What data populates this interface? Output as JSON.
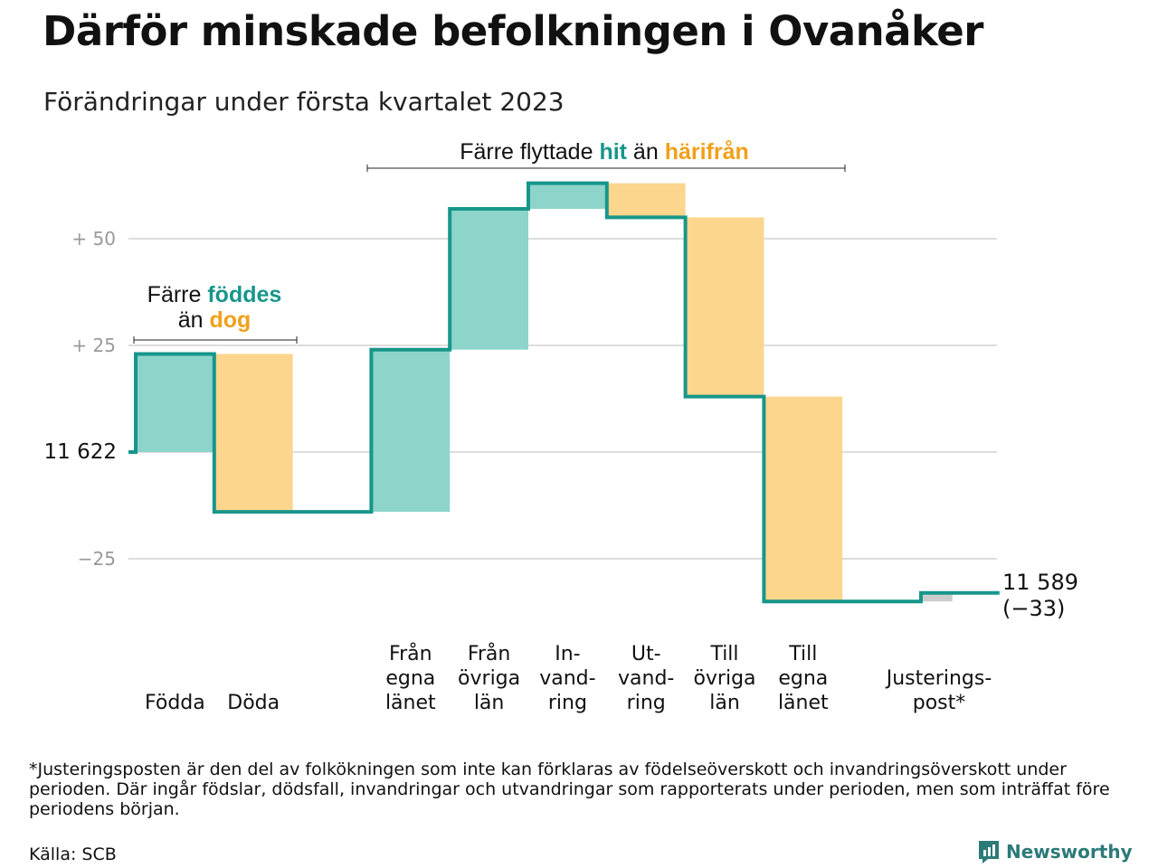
{
  "title": "Därför minskade befolkningen i Ovanåker",
  "subtitle": "Förändringar under första kvartalet 2023",
  "annotations": {
    "births_deaths": {
      "line1_prefix": "Färre ",
      "line1_highlight": "föddes",
      "line2_prefix": "än ",
      "line2_highlight": "dog"
    },
    "migration": {
      "prefix": "Färre flyttade ",
      "highlight1": "hit",
      "middle": " än ",
      "highlight2": "härifrån"
    }
  },
  "start_label": "11 622",
  "end_label": {
    "value": "11 589",
    "change": "(−33)"
  },
  "footnote": "*Justeringsposten är den del av folkökningen som inte kan förklaras av födelseöverskott och invandringsöverskott under perioden. Där ingår födslar, dödsfall, invandringar och utvandringar som rapporterats under perioden, men som inträffat före periodens början.",
  "source": "Källa: SCB",
  "brand": "Newsworthy",
  "colors": {
    "increase": "#8dd4cb",
    "decrease": "#fbd68c",
    "line": "#17968a",
    "adjustment": "#cccccc",
    "grid": "#dddddd",
    "tick_text": "#999999",
    "highlight_teal": "#17968a",
    "highlight_orange": "#f0a01a"
  },
  "chart_data": {
    "type": "waterfall",
    "start_value": 11622,
    "end_value": 11589,
    "total_change": -33,
    "yticks": [
      {
        "value": 50,
        "label": "+ 50"
      },
      {
        "value": 25,
        "label": "+ 25"
      },
      {
        "value": 0,
        "label": ""
      },
      {
        "value": -25,
        "label": "−25"
      }
    ],
    "ylim": [
      -35,
      66
    ],
    "categories": [
      {
        "label": [
          "Födda"
        ],
        "change": 23,
        "kind": "increase"
      },
      {
        "label": [
          "Döda"
        ],
        "change": -37,
        "kind": "decrease"
      },
      {
        "label": [
          ""
        ],
        "change": 0,
        "kind": "gap"
      },
      {
        "label": [
          "Från",
          "egna",
          "länet"
        ],
        "change": 38,
        "kind": "increase"
      },
      {
        "label": [
          "Från",
          "övriga",
          "län"
        ],
        "change": 33,
        "kind": "increase"
      },
      {
        "label": [
          "In-",
          "vand-",
          "ring"
        ],
        "change": 6,
        "kind": "increase"
      },
      {
        "label": [
          "Ut-",
          "vand-",
          "ring"
        ],
        "change": -8,
        "kind": "decrease"
      },
      {
        "label": [
          "Till",
          "övriga",
          "län"
        ],
        "change": -42,
        "kind": "decrease"
      },
      {
        "label": [
          "Till",
          "egna",
          "länet"
        ],
        "change": -48,
        "kind": "decrease"
      },
      {
        "label": [
          ""
        ],
        "change": 0,
        "kind": "gap"
      },
      {
        "label": [
          "Justerings-",
          "post*"
        ],
        "change": 2,
        "kind": "adjustment"
      }
    ]
  }
}
